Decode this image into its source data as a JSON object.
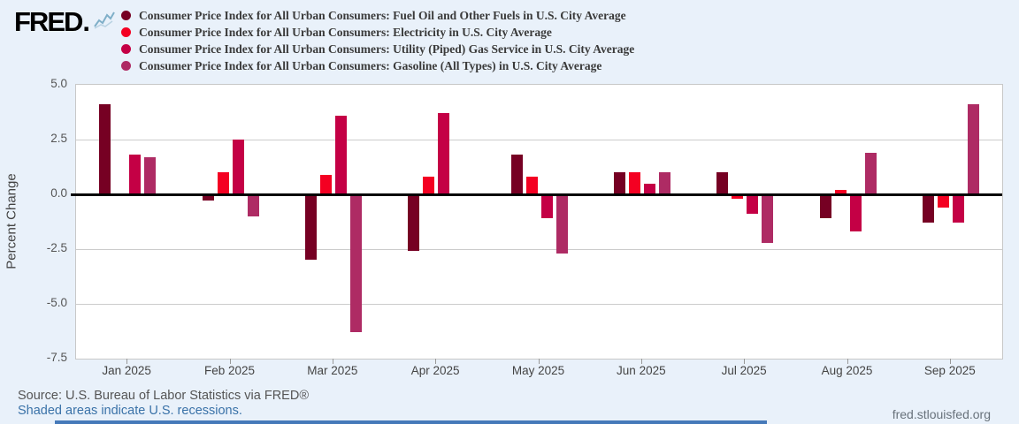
{
  "header": {
    "logo_text": "FRED",
    "logo_suffix": ".",
    "legend_items": [
      {
        "key": "fuel-oil",
        "label": "Consumer Price Index for All Urban Consumers: Fuel Oil and Other Fuels in U.S. City Average",
        "color": "#760023"
      },
      {
        "key": "electricity",
        "label": "Consumer Price Index for All Urban Consumers: Electricity in U.S. City Average",
        "color": "#f40022"
      },
      {
        "key": "utility-gas",
        "label": "Consumer Price Index for All Urban Consumers: Utility (Piped) Gas Service in U.S. City Average",
        "color": "#c40045"
      },
      {
        "key": "gasoline",
        "label": "Consumer Price Index for All Urban Consumers: Gasoline (All Types) in U.S. City Average",
        "color": "#ae2b64"
      }
    ]
  },
  "chart_data": {
    "type": "bar",
    "title": "",
    "xlabel": "",
    "ylabel": "Percent Change",
    "ylim": [
      -7.5,
      5.0
    ],
    "yticks": [
      5.0,
      2.5,
      0.0,
      -2.5,
      -5.0,
      -7.5
    ],
    "ytick_labels": [
      "5.0",
      "2.5",
      "0.0",
      "-2.5",
      "-5.0",
      "-7.5"
    ],
    "grid": true,
    "legend_position": "top",
    "categories": [
      "Jan 2025",
      "Feb 2025",
      "Mar 2025",
      "Apr 2025",
      "May 2025",
      "Jun 2025",
      "Jul 2025",
      "Aug 2025",
      "Sep 2025"
    ],
    "series": [
      {
        "key": "fuel-oil",
        "name": "CPI Fuel Oil and Other Fuels",
        "color": "#760023",
        "values": [
          4.1,
          -0.3,
          -3.0,
          -2.6,
          1.8,
          1.0,
          1.0,
          -1.1,
          -1.3
        ]
      },
      {
        "key": "electricity",
        "name": "CPI Electricity",
        "color": "#f40022",
        "values": [
          -0.1,
          1.0,
          0.9,
          0.8,
          0.8,
          1.0,
          -0.2,
          0.2,
          -0.6
        ]
      },
      {
        "key": "utility-gas",
        "name": "CPI Utility (Piped) Gas Service",
        "color": "#c40045",
        "values": [
          1.8,
          2.5,
          3.6,
          3.7,
          -1.1,
          0.5,
          -0.9,
          -1.7,
          -1.3
        ]
      },
      {
        "key": "gasoline",
        "name": "CPI Gasoline (All Types)",
        "color": "#ae2b64",
        "values": [
          1.7,
          -1.0,
          -6.3,
          -0.1,
          -2.7,
          1.0,
          -2.2,
          1.9,
          4.1
        ]
      }
    ]
  },
  "footer": {
    "source": "Source: U.S. Bureau of Labor Statistics via FRED®",
    "recession_note": "Shaded areas indicate U.S. recessions.",
    "site": "fred.stlouisfed.org"
  },
  "colors": {
    "background": "#e9f1fa",
    "plot_background": "#ffffff",
    "gridline": "#cccccc",
    "zero_line": "#000000",
    "axis_text": "#555555",
    "bottom_bar": "#4579b9"
  }
}
